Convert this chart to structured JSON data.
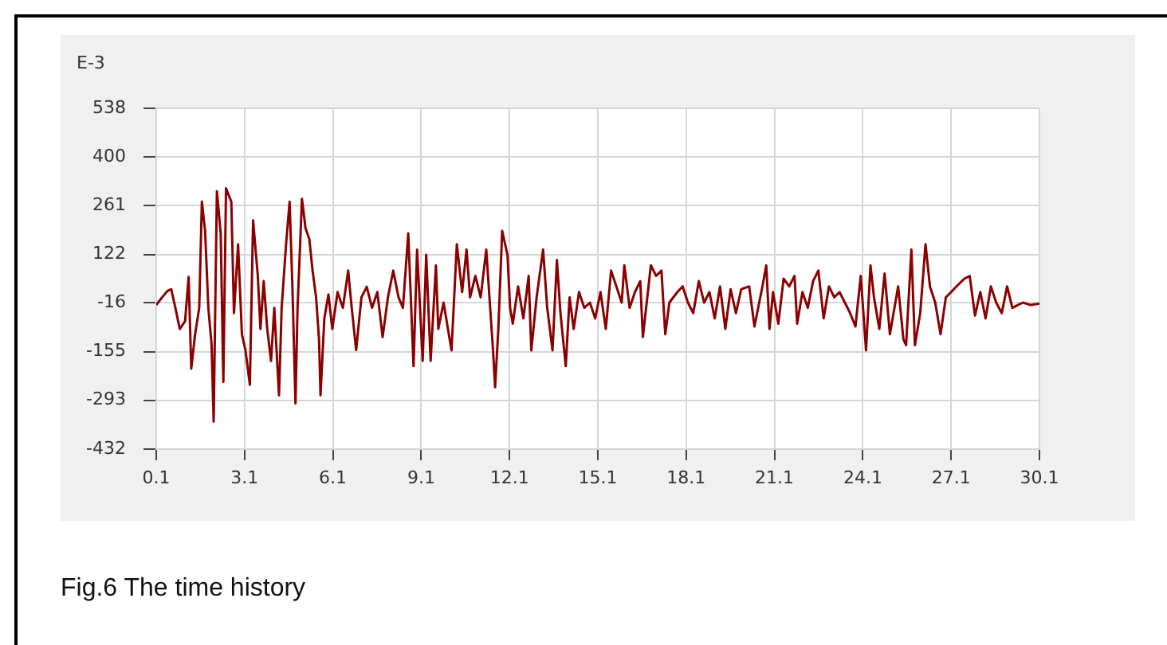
{
  "chart_data": {
    "type": "line",
    "ylabel": "E-3",
    "annotations": [
      "Fig.6 The time history"
    ],
    "x": [
      0.1,
      0.3,
      0.48,
      0.61,
      0.75,
      0.9,
      1.08,
      1.2,
      1.29,
      1.42,
      1.56,
      1.65,
      1.76,
      1.87,
      1.98,
      2.05,
      2.16,
      2.29,
      2.38,
      2.47,
      2.65,
      2.74,
      2.88,
      3.01,
      3.13,
      3.28,
      3.39,
      3.55,
      3.64,
      3.75,
      3.87,
      4.0,
      4.11,
      4.27,
      4.36,
      4.51,
      4.63,
      4.72,
      4.83,
      4.9,
      5.05,
      5.17,
      5.3,
      5.41,
      5.53,
      5.63,
      5.68,
      5.81,
      5.95,
      6.08,
      6.26,
      6.44,
      6.62,
      6.74,
      6.89,
      7.07,
      7.25,
      7.43,
      7.61,
      7.79,
      7.97,
      8.15,
      8.33,
      8.48,
      8.66,
      8.84,
      8.96,
      9.15,
      9.27,
      9.42,
      9.6,
      9.68,
      9.86,
      10.13,
      10.31,
      10.49,
      10.64,
      10.76,
      10.94,
      11.12,
      11.31,
      11.43,
      11.54,
      11.61,
      11.72,
      11.85,
      12.03,
      12.12,
      12.21,
      12.39,
      12.57,
      12.75,
      12.84,
      13.02,
      13.24,
      13.38,
      13.56,
      13.71,
      13.83,
      14.01,
      14.14,
      14.28,
      14.46,
      14.64,
      14.83,
      15.01,
      15.19,
      15.37,
      15.55,
      15.73,
      15.91,
      16.0,
      16.18,
      16.36,
      16.54,
      16.63,
      16.9,
      17.08,
      17.26,
      17.39,
      17.53,
      17.8,
      17.98,
      18.16,
      18.34,
      18.53,
      18.71,
      18.89,
      19.07,
      19.25,
      19.43,
      19.61,
      19.79,
      19.97,
      20.24,
      20.42,
      20.69,
      20.82,
      20.93,
      21.05,
      21.23,
      21.41,
      21.6,
      21.78,
      21.87,
      22.05,
      22.23,
      22.41,
      22.59,
      22.77,
      22.95,
      23.13,
      23.31,
      23.49,
      23.67,
      23.85,
      24.03,
      24.21,
      24.36,
      24.48,
      24.66,
      24.84,
      25.02,
      25.3,
      25.48,
      25.57,
      25.75,
      25.87,
      26.05,
      26.23,
      26.38,
      26.56,
      26.74,
      26.92,
      27.1,
      27.28,
      27.55,
      27.73,
      27.91,
      28.09,
      28.27,
      28.45,
      28.63,
      28.82,
      29.0,
      29.18,
      29.36,
      29.54,
      29.81,
      30.1
    ],
    "values": [
      -22,
      0,
      18,
      23,
      -30,
      -90,
      -68,
      58,
      -203,
      -105,
      -30,
      272,
      189,
      -30,
      -135,
      -354,
      302,
      182,
      -241,
      310,
      272,
      -45,
      151,
      -105,
      -150,
      -249,
      219,
      61,
      -90,
      46,
      -90,
      -181,
      -30,
      -279,
      -30,
      151,
      272,
      46,
      -302,
      -30,
      280,
      197,
      166,
      76,
      0,
      -120,
      -279,
      -60,
      8,
      -90,
      15,
      -30,
      76,
      -30,
      -150,
      0,
      30,
      -30,
      15,
      -113,
      0,
      76,
      0,
      -30,
      182,
      -196,
      136,
      -181,
      121,
      -181,
      91,
      -90,
      -15,
      -151,
      151,
      15,
      136,
      0,
      61,
      0,
      136,
      -15,
      -151,
      -256,
      -90,
      189,
      121,
      -30,
      -75,
      31,
      -60,
      61,
      -151,
      0,
      136,
      -30,
      -151,
      106,
      -45,
      -196,
      0,
      -90,
      15,
      -30,
      -15,
      -60,
      15,
      -90,
      76,
      31,
      -15,
      91,
      -30,
      15,
      46,
      -113,
      91,
      61,
      76,
      -105,
      -15,
      15,
      31,
      -15,
      -45,
      46,
      -15,
      15,
      -60,
      31,
      -90,
      23,
      -45,
      23,
      31,
      -83,
      31,
      91,
      -90,
      15,
      -75,
      53,
      31,
      61,
      -75,
      15,
      -30,
      46,
      76,
      -60,
      31,
      0,
      15,
      -15,
      -45,
      -83,
      61,
      -151,
      91,
      0,
      -90,
      68,
      -105,
      31,
      -120,
      -136,
      136,
      -136,
      -45,
      151,
      31,
      -15,
      -105,
      0,
      15,
      31,
      53,
      61,
      -52,
      15,
      -60,
      31,
      -15,
      -45,
      31,
      -30,
      -22,
      -15,
      -22,
      -18
    ],
    "color": "#8b0000",
    "marker": "none",
    "line_style": "solid",
    "xlim": [
      0.1,
      30.1
    ],
    "xticks": [
      0.1,
      3.1,
      6.1,
      9.1,
      12.1,
      15.1,
      18.1,
      21.1,
      24.1,
      27.1,
      30.1
    ],
    "ylim": [
      -432,
      538
    ],
    "yticks": [
      -432,
      -293,
      -155,
      -16,
      122,
      261,
      400,
      538
    ],
    "grid": true
  }
}
